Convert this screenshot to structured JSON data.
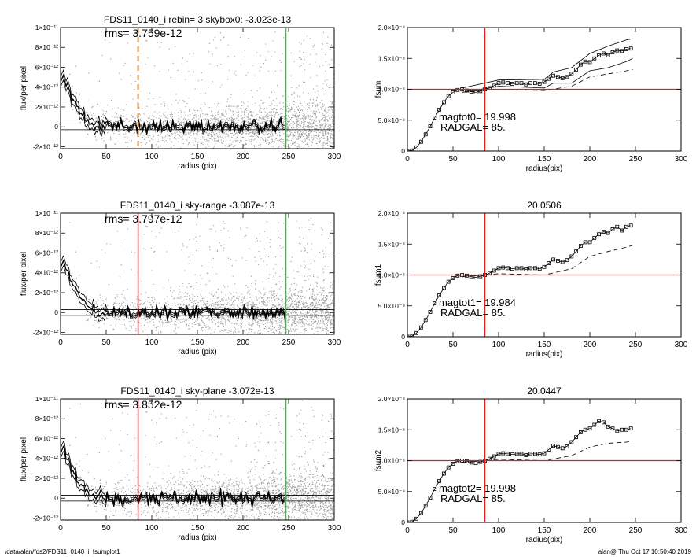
{
  "footer": {
    "path": "/data/alan/fds2/FDS11_0140_i_fsumplot1",
    "stamp": "alan@  Thu Oct 17 10:50:40 2019"
  },
  "colors": {
    "red": "#e02020",
    "green": "#22cc22",
    "orange": "#e08a30",
    "scatter": "#9a9a9a"
  },
  "chart_data": [
    {
      "type": "scatter",
      "title": "FDS11_0140_i rebin= 3    skybox0: -3.023e-13",
      "xlabel": "radius (pix)",
      "ylabel": "flux/per pixel",
      "xlim": [
        0,
        300
      ],
      "ylim": [
        -2.2e-12,
        1e-11
      ],
      "xticks": [
        0,
        50,
        100,
        150,
        200,
        250,
        300
      ],
      "yticks": [
        "1×10⁻¹¹",
        "8×10⁻¹²",
        "6×10⁻¹²",
        "4×10⁻¹²",
        "2×10⁻¹²",
        "0",
        "-2×10⁻¹²"
      ],
      "ytick_values": [
        1e-11,
        8e-12,
        6e-12,
        4e-12,
        2e-12,
        0,
        -2e-12
      ],
      "annotation": "rms= 3.759e-12",
      "vline_dashed": 85,
      "vline_dashed_color": "orange",
      "vline_green": 247,
      "hlines": [
        -2.9e-13,
        2.9e-13
      ],
      "mean_profile": {
        "x": [
          0,
          3,
          6,
          10,
          14,
          18,
          22,
          26,
          30,
          35,
          40,
          45,
          50,
          60,
          80,
          100,
          150,
          200,
          247
        ],
        "y": [
          4.5e-12,
          5.2e-12,
          4.3e-12,
          3.6e-12,
          2.7e-12,
          2.2e-12,
          1.5e-12,
          9e-13,
          6e-13,
          3e-13,
          1e-13,
          0,
          -1e-13,
          0,
          -1e-13,
          0,
          0,
          0,
          0
        ]
      }
    },
    {
      "type": "scatter",
      "title": "FDS11_0140_i sky-range -3.087e-13",
      "xlabel": "radius (pix)",
      "ylabel": "flux/per pixel",
      "xlim": [
        0,
        300
      ],
      "ylim": [
        -2.2e-12,
        1e-11
      ],
      "xticks": [
        0,
        50,
        100,
        150,
        200,
        250,
        300
      ],
      "yticks": [
        "1×10⁻¹¹",
        "8×10⁻¹²",
        "6×10⁻¹²",
        "4×10⁻¹²",
        "2×10⁻¹²",
        "0",
        "-2×10⁻¹²"
      ],
      "ytick_values": [
        1e-11,
        8e-12,
        6e-12,
        4e-12,
        2e-12,
        0,
        -2e-12
      ],
      "annotation": "rms= 3.797e-12",
      "vline_red": 85,
      "vline_green": 247,
      "hlines": [
        -2.9e-13,
        2.9e-13
      ],
      "mean_profile": {
        "x": [
          0,
          3,
          6,
          10,
          14,
          18,
          22,
          26,
          30,
          35,
          40,
          45,
          50,
          60,
          80,
          100,
          150,
          200,
          247
        ],
        "y": [
          4.5e-12,
          5.2e-12,
          4.3e-12,
          3.6e-12,
          2.7e-12,
          2.2e-12,
          1.5e-12,
          9e-13,
          6e-13,
          3e-13,
          1e-13,
          0,
          -1e-13,
          0,
          -1e-13,
          0,
          0,
          0,
          0
        ]
      }
    },
    {
      "type": "scatter",
      "title": "FDS11_0140_i sky-plane -3.072e-13",
      "xlabel": "radius (pix)",
      "ylabel": "flux/per pixel",
      "xlim": [
        0,
        300
      ],
      "ylim": [
        -2.2e-12,
        1e-11
      ],
      "xticks": [
        0,
        50,
        100,
        150,
        200,
        250,
        300
      ],
      "yticks": [
        "1×10⁻¹¹",
        "8×10⁻¹²",
        "6×10⁻¹²",
        "4×10⁻¹²",
        "2×10⁻¹²",
        "0",
        "-2×10⁻¹²"
      ],
      "ytick_values": [
        1e-11,
        8e-12,
        6e-12,
        4e-12,
        2e-12,
        0,
        -2e-12
      ],
      "annotation": "rms= 3.852e-12",
      "vline_red": 85,
      "vline_green": 247,
      "hlines": [
        -2.9e-13,
        2.9e-13
      ],
      "mean_profile": {
        "x": [
          0,
          3,
          6,
          10,
          14,
          18,
          22,
          26,
          30,
          35,
          40,
          45,
          50,
          60,
          80,
          100,
          150,
          200,
          247
        ],
        "y": [
          4.5e-12,
          5.2e-12,
          4.3e-12,
          3.6e-12,
          2.7e-12,
          2.2e-12,
          1.5e-12,
          9e-13,
          6e-13,
          3e-13,
          1e-13,
          0,
          -1e-13,
          0,
          -1e-13,
          0,
          0,
          0,
          0
        ]
      }
    },
    {
      "type": "line",
      "title": "",
      "xlabel": "radius(pix)",
      "ylabel": "fsum",
      "xlim": [
        0,
        300
      ],
      "ylim": [
        0,
        2e-08
      ],
      "xticks": [
        0,
        50,
        100,
        150,
        200,
        250,
        300
      ],
      "yticks": [
        "2.0×10⁻⁸",
        "1.5×10⁻⁸",
        "1.0×10⁻⁸",
        "5.0×10⁻⁹",
        "0"
      ],
      "ytick_values": [
        2e-08,
        1.5e-08,
        1e-08,
        5e-09,
        0
      ],
      "annotations": [
        "magtot0=  19.998",
        "RADGAL=     85."
      ],
      "vline_red": 85,
      "hline_red": 1e-08,
      "series": [
        {
          "style": "squares",
          "x": [
            0,
            5,
            10,
            15,
            20,
            25,
            30,
            35,
            40,
            45,
            50,
            55,
            60,
            65,
            70,
            75,
            80,
            85,
            90,
            95,
            100,
            105,
            110,
            115,
            120,
            125,
            130,
            135,
            140,
            145,
            150,
            155,
            160,
            165,
            170,
            175,
            180,
            185,
            190,
            195,
            200,
            205,
            210,
            215,
            220,
            225,
            230,
            235,
            240,
            245
          ],
          "y": [
            0,
            1e-10,
            6e-10,
            1.5e-09,
            2.7e-09,
            4e-09,
            5.4e-09,
            6.7e-09,
            7.9e-09,
            8.9e-09,
            9.5e-09,
            9.9e-09,
            1e-08,
            9.8e-09,
            9.6e-09,
            9.5e-09,
            9.7e-09,
            1e-08,
            1.02e-08,
            1.06e-08,
            1.1e-08,
            1.11e-08,
            1.1e-08,
            1.09e-08,
            1.1e-08,
            1.1e-08,
            1.08e-08,
            1.1e-08,
            1.1e-08,
            1.09e-08,
            1.12e-08,
            1.17e-08,
            1.22e-08,
            1.2e-08,
            1.18e-08,
            1.2e-08,
            1.25e-08,
            1.32e-08,
            1.4e-08,
            1.45e-08,
            1.44e-08,
            1.5e-08,
            1.55e-08,
            1.58e-08,
            1.55e-08,
            1.6e-08,
            1.63e-08,
            1.62e-08,
            1.65e-08,
            1.66e-08
          ]
        },
        {
          "style": "solid-upper",
          "x": [
            60,
            100,
            150,
            160,
            180,
            200,
            220,
            240,
            247
          ],
          "y": [
            1.02e-08,
            1.15e-08,
            1.16e-08,
            1.28e-08,
            1.35e-08,
            1.58e-08,
            1.7e-08,
            1.8e-08,
            1.82e-08
          ]
        },
        {
          "style": "solid-lower",
          "x": [
            60,
            100,
            150,
            160,
            180,
            200,
            220,
            240,
            247
          ],
          "y": [
            9.5e-09,
            1.05e-08,
            1.02e-08,
            1.1e-08,
            1.1e-08,
            1.3e-08,
            1.35e-08,
            1.45e-08,
            1.5e-08
          ]
        },
        {
          "style": "dashed",
          "x": [
            60,
            100,
            150,
            180,
            200,
            220,
            240,
            247
          ],
          "y": [
            9.5e-09,
            1e-08,
            9.8e-09,
            1.05e-08,
            1.2e-08,
            1.25e-08,
            1.3e-08,
            1.32e-08
          ]
        }
      ]
    },
    {
      "type": "line",
      "title": "20.0506",
      "xlabel": "radius(pix)",
      "ylabel": "fsum1",
      "xlim": [
        0,
        300
      ],
      "ylim": [
        0,
        2e-08
      ],
      "xticks": [
        0,
        50,
        100,
        150,
        200,
        250,
        300
      ],
      "yticks": [
        "2.0×10⁻⁸",
        "1.5×10⁻⁸",
        "1.0×10⁻⁸",
        "5.0×10⁻⁹",
        "0"
      ],
      "ytick_values": [
        2e-08,
        1.5e-08,
        1e-08,
        5e-09,
        0
      ],
      "annotations": [
        "magtot1=  19.984",
        "RADGAL=     85."
      ],
      "vline_red": 85,
      "hline_red": 1e-08,
      "series": [
        {
          "style": "squares",
          "x": [
            0,
            5,
            10,
            15,
            20,
            25,
            30,
            35,
            40,
            45,
            50,
            55,
            60,
            65,
            70,
            75,
            80,
            85,
            90,
            95,
            100,
            105,
            110,
            115,
            120,
            125,
            130,
            135,
            140,
            145,
            150,
            155,
            160,
            165,
            170,
            175,
            180,
            185,
            190,
            195,
            200,
            205,
            210,
            215,
            220,
            225,
            230,
            235,
            240,
            245
          ],
          "y": [
            0,
            1e-10,
            6e-10,
            1.5e-09,
            2.7e-09,
            4e-09,
            5.4e-09,
            6.7e-09,
            7.9e-09,
            8.9e-09,
            9.5e-09,
            9.9e-09,
            1e-08,
            9.9e-09,
            9.7e-09,
            9.6e-09,
            9.8e-09,
            1e-08,
            1.03e-08,
            1.07e-08,
            1.11e-08,
            1.12e-08,
            1.11e-08,
            1.1e-08,
            1.11e-08,
            1.11e-08,
            1.09e-08,
            1.11e-08,
            1.11e-08,
            1.1e-08,
            1.13e-08,
            1.19e-08,
            1.25e-08,
            1.23e-08,
            1.21e-08,
            1.24e-08,
            1.3e-08,
            1.38e-08,
            1.47e-08,
            1.53e-08,
            1.53e-08,
            1.6e-08,
            1.66e-08,
            1.7e-08,
            1.68e-08,
            1.74e-08,
            1.78e-08,
            1.72e-08,
            1.78e-08,
            1.8e-08
          ]
        },
        {
          "style": "dashed",
          "x": [
            60,
            100,
            150,
            180,
            200,
            220,
            240,
            247
          ],
          "y": [
            9.7e-09,
            1.02e-08,
            1e-08,
            1.1e-08,
            1.3e-08,
            1.38e-08,
            1.45e-08,
            1.48e-08
          ]
        }
      ]
    },
    {
      "type": "line",
      "title": "20.0447",
      "xlabel": "radius(pix)",
      "ylabel": "fsum2",
      "xlim": [
        0,
        300
      ],
      "ylim": [
        0,
        2e-08
      ],
      "xticks": [
        0,
        50,
        100,
        150,
        200,
        250,
        300
      ],
      "yticks": [
        "2.0×10⁻⁸",
        "1.5×10⁻⁸",
        "1.0×10⁻⁸",
        "5.0×10⁻⁹",
        "0"
      ],
      "ytick_values": [
        2e-08,
        1.5e-08,
        1e-08,
        5e-09,
        0
      ],
      "annotations": [
        "magtot2=  19.998",
        "RADGAL=     85."
      ],
      "vline_red": 85,
      "hline_red": 1e-08,
      "series": [
        {
          "style": "squares",
          "x": [
            0,
            5,
            10,
            15,
            20,
            25,
            30,
            35,
            40,
            45,
            50,
            55,
            60,
            65,
            70,
            75,
            80,
            85,
            90,
            95,
            100,
            105,
            110,
            115,
            120,
            125,
            130,
            135,
            140,
            145,
            150,
            155,
            160,
            165,
            170,
            175,
            180,
            185,
            190,
            195,
            200,
            205,
            210,
            215,
            220,
            225,
            230,
            235,
            240,
            245
          ],
          "y": [
            0,
            1e-10,
            6e-10,
            1.5e-09,
            2.7e-09,
            4e-09,
            5.4e-09,
            6.7e-09,
            7.9e-09,
            8.9e-09,
            9.5e-09,
            9.9e-09,
            1e-08,
            9.9e-09,
            9.7e-09,
            9.6e-09,
            9.8e-09,
            1e-08,
            1.03e-08,
            1.07e-08,
            1.11e-08,
            1.12e-08,
            1.11e-08,
            1.1e-08,
            1.11e-08,
            1.11e-08,
            1.09e-08,
            1.11e-08,
            1.11e-08,
            1.1e-08,
            1.12e-08,
            1.18e-08,
            1.24e-08,
            1.22e-08,
            1.2e-08,
            1.23e-08,
            1.3e-08,
            1.38e-08,
            1.46e-08,
            1.5e-08,
            1.52e-08,
            1.58e-08,
            1.64e-08,
            1.62e-08,
            1.55e-08,
            1.52e-08,
            1.48e-08,
            1.5e-08,
            1.5e-08,
            1.52e-08
          ]
        },
        {
          "style": "dashed",
          "x": [
            60,
            100,
            150,
            180,
            200,
            220,
            240,
            247
          ],
          "y": [
            9.7e-09,
            1.02e-08,
            1e-08,
            1.08e-08,
            1.22e-08,
            1.28e-08,
            1.3e-08,
            1.32e-08
          ]
        }
      ]
    }
  ]
}
